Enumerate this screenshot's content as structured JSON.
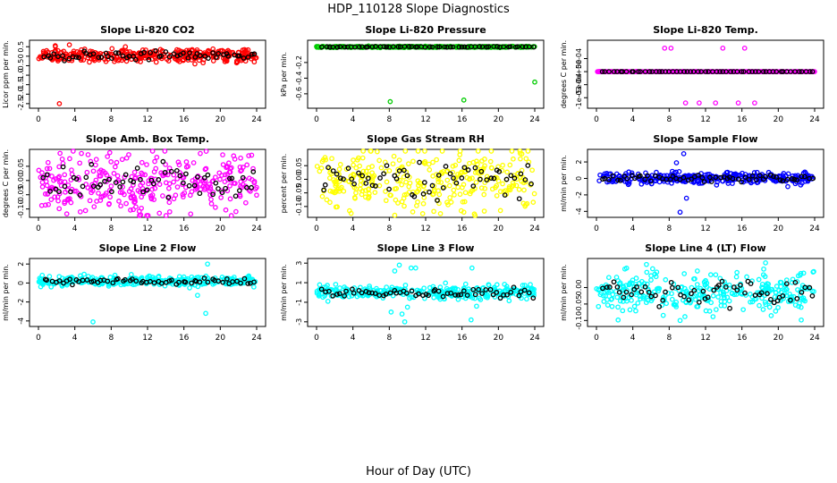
{
  "page": {
    "title": "HDP_110128  Slope Diagnostics",
    "xlabel": "Hour of Day (UTC)"
  },
  "colors": {
    "red": "#ff0000",
    "green": "#00cc00",
    "magenta": "#ff00ff",
    "yellow": "#ffff00",
    "blue": "#0000ff",
    "cyan": "#00ffff",
    "black": "#000000"
  },
  "chart_data": [
    {
      "type": "scatter",
      "title": "Slope Li-820 CO2",
      "ylabel": "Licor ppm per min.",
      "xlim": [
        0,
        24
      ],
      "ylim": [
        -2.6,
        0.7
      ],
      "xticks": [
        "0",
        "4",
        "8",
        "12",
        "16",
        "20",
        "24"
      ],
      "yticks": [
        0.5,
        0,
        -0.5,
        -1.0,
        -1.5,
        -2.0,
        -2.5
      ],
      "yticklabels": [
        "0.5",
        "0",
        "-0.5",
        "-1.0",
        "-1.5",
        "-2.0",
        "-2.5"
      ],
      "color_name": "red",
      "center": 0.05,
      "spread": 0.18,
      "outliers": [
        [
          2.3,
          -2.5
        ],
        [
          3.4,
          0.6
        ],
        [
          21.8,
          -0.35
        ]
      ]
    },
    {
      "type": "scatter",
      "title": "Slope Li-820 Pressure",
      "ylabel": "kPa per min.",
      "xlim": [
        0,
        24
      ],
      "ylim": [
        -0.75,
        0.05
      ],
      "xticks": [
        "0",
        "4",
        "8",
        "12",
        "16",
        "20",
        "24"
      ],
      "yticks": [
        -0.2,
        -0.4,
        -0.6
      ],
      "yticklabels": [
        "-0.2",
        "-0.4",
        "-0.6"
      ],
      "color_name": "green",
      "center": 0.0,
      "spread": 0.004,
      "outliers": [
        [
          8.1,
          -0.7
        ],
        [
          16.2,
          -0.68
        ],
        [
          24.0,
          -0.45
        ]
      ]
    },
    {
      "type": "scatter",
      "title": "Slope Li-820 Temp.",
      "ylabel": "degrees C per min.",
      "xlim": [
        0,
        24
      ],
      "ylim": [
        -0.0013,
        0.0011
      ],
      "xticks": [
        "0",
        "4",
        "8",
        "12",
        "16",
        "20",
        "24"
      ],
      "yticks": [
        0.0005,
        0,
        -0.0005,
        -0.001
      ],
      "yticklabels": [
        "5e-04",
        "0e+00",
        "-5e-04",
        "-1e-03"
      ],
      "color_name": "magenta",
      "center": 0.0,
      "spread": 0.0,
      "outliers": [
        [
          7.5,
          0.0009
        ],
        [
          8.2,
          0.0009
        ],
        [
          9.8,
          -0.0012
        ],
        [
          11.3,
          -0.0012
        ],
        [
          13.1,
          -0.0012
        ],
        [
          13.9,
          0.0009
        ],
        [
          15.6,
          -0.0012
        ],
        [
          16.3,
          0.0009
        ],
        [
          17.4,
          -0.0012
        ]
      ]
    },
    {
      "type": "scatter",
      "title": "Slope Amb. Box Temp.",
      "ylabel": "degrees C per min.",
      "xlim": [
        0,
        24
      ],
      "ylim": [
        -0.12,
        0.1
      ],
      "xticks": [
        "0",
        "4",
        "8",
        "12",
        "16",
        "20",
        "24"
      ],
      "yticks": [
        0.05,
        0,
        -0.05,
        -0.1
      ],
      "yticklabels": [
        "0.05",
        "0.00",
        "-0.05",
        "-0.10"
      ],
      "color_name": "magenta",
      "center": -0.01,
      "spread": 0.05,
      "outliers": [
        [
          17.8,
          0.095
        ],
        [
          4.6,
          -0.11
        ],
        [
          13.3,
          -0.115
        ]
      ]
    },
    {
      "type": "scatter",
      "title": "Slope Gas Stream RH",
      "ylabel": "percent per min.",
      "xlim": [
        0,
        24
      ],
      "ylim": [
        -0.13,
        0.1
      ],
      "xticks": [
        "0",
        "4",
        "8",
        "12",
        "16",
        "20",
        "24"
      ],
      "yticks": [
        0.05,
        0,
        -0.05,
        -0.1
      ],
      "yticklabels": [
        "0.05",
        "0.00",
        "-0.05",
        "-0.10"
      ],
      "color_name": "yellow",
      "center": 0.0,
      "spread": 0.055,
      "outliers": [
        [
          3.8,
          -0.125
        ],
        [
          22.4,
          0.095
        ]
      ]
    },
    {
      "type": "scatter",
      "title": "Slope Sample Flow",
      "ylabel": "ml/min per min.",
      "xlim": [
        0,
        24
      ],
      "ylim": [
        -4.4,
        3.2
      ],
      "xticks": [
        "0",
        "4",
        "8",
        "12",
        "16",
        "20",
        "24"
      ],
      "yticks": [
        2,
        0,
        -2,
        -4
      ],
      "yticklabels": [
        "2",
        "0",
        "-2",
        "-4"
      ],
      "color_name": "blue",
      "center": 0.0,
      "spread": 0.35,
      "outliers": [
        [
          9.2,
          -4.1
        ],
        [
          9.6,
          3.0
        ],
        [
          8.8,
          1.9
        ],
        [
          9.9,
          -2.4
        ]
      ]
    },
    {
      "type": "scatter",
      "title": "Slope Line 2 Flow",
      "ylabel": "ml/min per min.",
      "xlim": [
        0,
        24
      ],
      "ylim": [
        -4.3,
        2.3
      ],
      "xticks": [
        "0",
        "4",
        "8",
        "12",
        "16",
        "20",
        "24"
      ],
      "yticks": [
        2,
        0,
        -2,
        -4
      ],
      "yticklabels": [
        "2",
        "0",
        "-2",
        "-4"
      ],
      "color_name": "cyan",
      "center": 0.2,
      "spread": 0.25,
      "outliers": [
        [
          6.0,
          -4.1
        ],
        [
          18.4,
          -3.2
        ],
        [
          18.6,
          2.0
        ],
        [
          17.5,
          -1.3
        ]
      ]
    },
    {
      "type": "scatter",
      "title": "Slope Line 3 Flow",
      "ylabel": "ml/min per min.",
      "xlim": [
        0,
        24
      ],
      "ylim": [
        -3.2,
        3.2
      ],
      "xticks": [
        "0",
        "4",
        "8",
        "12",
        "16",
        "20",
        "24"
      ],
      "yticks": [
        3,
        1,
        -1,
        -3
      ],
      "yticklabels": [
        "3",
        "1",
        "-1",
        "-3"
      ],
      "color_name": "cyan",
      "center": 0.0,
      "spread": 0.35,
      "outliers": [
        [
          8.6,
          2.2
        ],
        [
          9.1,
          2.8
        ],
        [
          9.4,
          -2.2
        ],
        [
          9.7,
          -3.0
        ],
        [
          10.0,
          -1.5
        ],
        [
          10.4,
          2.5
        ],
        [
          10.9,
          2.5
        ],
        [
          8.2,
          -2.0
        ],
        [
          17.1,
          2.5
        ],
        [
          17.6,
          -1.4
        ],
        [
          17.0,
          -2.8
        ]
      ]
    },
    {
      "type": "scatter",
      "title": "Slope Line 4 (LT) Flow",
      "ylabel": "ml/min per min.",
      "xlim": [
        0,
        24
      ],
      "ylim": [
        -0.11,
        0.08
      ],
      "xticks": [
        "0",
        "4",
        "8",
        "12",
        "16",
        "20",
        "24"
      ],
      "yticks": [
        0,
        -0.05,
        -0.1
      ],
      "yticklabels": [
        "0.00",
        "-0.05",
        "-0.10"
      ],
      "color_name": "cyan",
      "center": -0.015,
      "spread": 0.03,
      "outliers": [
        [
          9.2,
          -0.1
        ],
        [
          18.6,
          0.075
        ],
        [
          5.5,
          0.07
        ]
      ]
    }
  ]
}
